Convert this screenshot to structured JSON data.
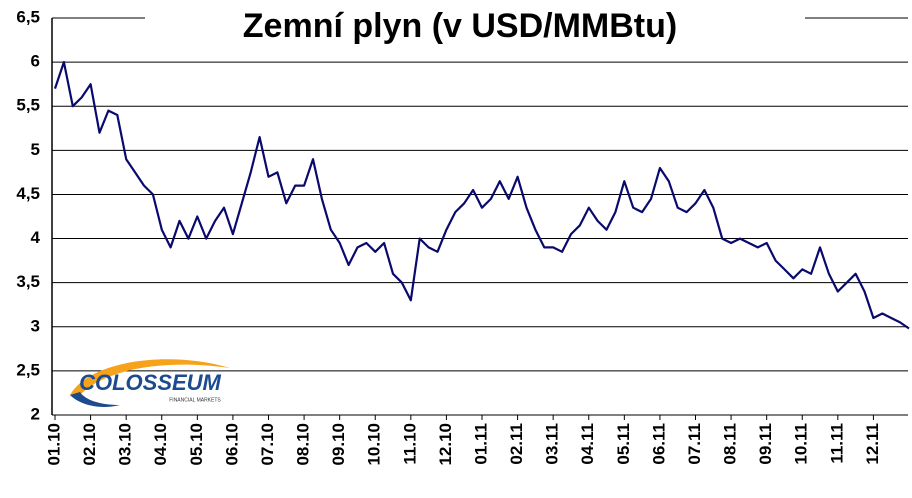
{
  "chart_data": {
    "type": "line",
    "title": "Zemní plyn (v USD/MMBtu)",
    "logo": {
      "name": "COLOSSEUM",
      "tagline": "FINANCIAL MARKETS"
    },
    "categories": [
      "01.10",
      null,
      null,
      null,
      "02.10",
      null,
      null,
      null,
      "03.10",
      null,
      null,
      null,
      "04.10",
      null,
      null,
      null,
      "05.10",
      null,
      null,
      null,
      "06.10",
      null,
      null,
      null,
      "07.10",
      null,
      null,
      null,
      "08.10",
      null,
      null,
      null,
      "09.10",
      null,
      null,
      null,
      "10.10",
      null,
      null,
      null,
      "11.10",
      null,
      null,
      null,
      "12.10",
      null,
      null,
      null,
      "01.11",
      null,
      null,
      null,
      "02.11",
      null,
      null,
      null,
      "03.11",
      null,
      null,
      null,
      "04.11",
      null,
      null,
      null,
      "05.11",
      null,
      null,
      null,
      "06.11",
      null,
      null,
      null,
      "07.11",
      null,
      null,
      null,
      "08.11",
      null,
      null,
      null,
      "09.11",
      null,
      null,
      null,
      "10.11",
      null,
      null,
      null,
      "11.11",
      null,
      null,
      null,
      "12.11",
      null,
      null,
      null,
      null
    ],
    "series": [
      {
        "name": "Zemní plyn",
        "color": "#0a0a6e",
        "values": [
          5.7,
          6.0,
          5.5,
          5.6,
          5.75,
          5.2,
          5.45,
          5.4,
          4.9,
          4.75,
          4.6,
          4.5,
          4.1,
          3.9,
          4.2,
          4.0,
          4.25,
          4.0,
          4.2,
          4.35,
          4.05,
          4.4,
          4.75,
          5.15,
          4.7,
          4.75,
          4.4,
          4.6,
          4.6,
          4.9,
          4.45,
          4.1,
          3.95,
          3.7,
          3.9,
          3.95,
          3.85,
          3.95,
          3.6,
          3.5,
          3.3,
          4.0,
          3.9,
          3.85,
          4.1,
          4.3,
          4.4,
          4.55,
          4.35,
          4.45,
          4.65,
          4.45,
          4.7,
          4.35,
          4.1,
          3.9,
          3.9,
          3.85,
          4.05,
          4.15,
          4.35,
          4.2,
          4.1,
          4.3,
          4.65,
          4.35,
          4.3,
          4.45,
          4.8,
          4.65,
          4.35,
          4.3,
          4.4,
          4.55,
          4.35,
          4.0,
          3.95,
          4.0,
          3.95,
          3.9,
          3.95,
          3.75,
          3.65,
          3.55,
          3.65,
          3.6,
          3.9,
          3.6,
          3.4,
          3.5,
          3.6,
          3.4,
          3.1,
          3.15,
          3.1,
          3.05,
          2.98
        ]
      }
    ],
    "ylim": [
      2,
      6.5
    ],
    "yticks": [
      2,
      {
        "value": 2.5,
        "label": "2,5"
      },
      3,
      {
        "value": 3.5,
        "label": "3,5"
      },
      4,
      {
        "value": 4.5,
        "label": "4,5"
      },
      5,
      {
        "value": 5.5,
        "label": "5,5"
      },
      6,
      {
        "value": 6.5,
        "label": "6,5"
      }
    ],
    "grid": true
  }
}
